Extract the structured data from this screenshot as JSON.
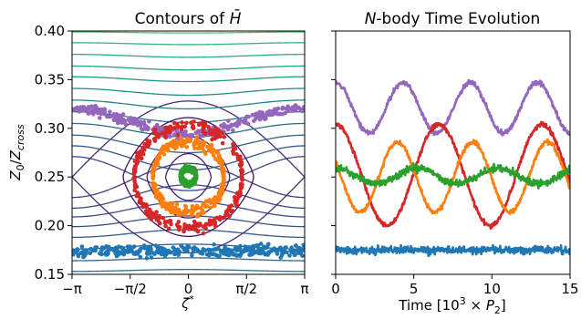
{
  "chart_data": [
    {
      "type": "scatter",
      "title": "Contours of H̄",
      "xlabel": "ζ*",
      "ylabel": "Z0/Zcross",
      "xlim": [
        -3.1416,
        3.1416
      ],
      "ylim": [
        0.15,
        0.4
      ],
      "x_ticks": [
        -3.1416,
        -1.5708,
        0,
        1.5708,
        3.1416
      ],
      "x_tick_labels": [
        "−π",
        "−π/2",
        "0",
        "π/2",
        "π"
      ],
      "y_ticks": [
        0.15,
        0.2,
        0.25,
        0.3,
        0.35,
        0.4
      ],
      "y_tick_labels": [
        "0.15",
        "0.20",
        "0.25",
        "0.30",
        "0.35",
        "0.40"
      ],
      "grid": false,
      "contour_colormap": "viridis",
      "contours": [
        {
          "kind": "open",
          "offset": 0.153,
          "amplitude": 0.002
        },
        {
          "kind": "open",
          "offset": 0.164,
          "amplitude": 0.003
        },
        {
          "kind": "open",
          "offset": 0.176,
          "amplitude": 0.005
        },
        {
          "kind": "open",
          "offset": 0.188,
          "amplitude": 0.008
        },
        {
          "kind": "open",
          "offset": 0.199,
          "amplitude": 0.011
        },
        {
          "kind": "open",
          "offset": 0.209,
          "amplitude": 0.016
        },
        {
          "kind": "open",
          "offset": 0.218,
          "amplitude": 0.024
        },
        {
          "kind": "open",
          "offset": 0.229,
          "amplitude": 0.035
        },
        {
          "kind": "separatrix",
          "center": 0.25,
          "halfwidth": 0.078
        },
        {
          "kind": "open",
          "offset": 0.271,
          "amplitude": -0.035
        },
        {
          "kind": "open",
          "offset": 0.282,
          "amplitude": -0.025
        },
        {
          "kind": "open",
          "offset": 0.293,
          "amplitude": -0.018
        },
        {
          "kind": "open",
          "offset": 0.305,
          "amplitude": -0.014
        },
        {
          "kind": "open",
          "offset": 0.317,
          "amplitude": -0.011
        },
        {
          "kind": "open",
          "offset": 0.329,
          "amplitude": -0.009
        },
        {
          "kind": "open",
          "offset": 0.341,
          "amplitude": -0.007
        },
        {
          "kind": "open",
          "offset": 0.353,
          "amplitude": -0.005
        },
        {
          "kind": "open",
          "offset": 0.364,
          "amplitude": -0.004
        },
        {
          "kind": "open",
          "offset": 0.376,
          "amplitude": -0.003
        },
        {
          "kind": "open",
          "offset": 0.388,
          "amplitude": -0.002
        },
        {
          "kind": "open",
          "offset": 0.399,
          "amplitude": -0.001
        },
        {
          "kind": "closed",
          "center": 0.25,
          "halfwidth": 0.01
        },
        {
          "kind": "closed",
          "center": 0.25,
          "halfwidth": 0.024
        },
        {
          "kind": "closed",
          "center": 0.25,
          "halfwidth": 0.042
        },
        {
          "kind": "closed",
          "center": 0.25,
          "halfwidth": 0.061
        }
      ],
      "series": [
        {
          "kind": "open",
          "color": "#9467bd",
          "offset": 0.3205,
          "amplitude": -0.026,
          "spread": 0.005
        },
        {
          "kind": "closed",
          "color": "#d62728",
          "center": 0.25,
          "halfwidth": 0.052,
          "spread": 0.006
        },
        {
          "kind": "closed",
          "color": "#ff7f0e",
          "center": 0.25,
          "halfwidth": 0.036,
          "spread": 0.006
        },
        {
          "kind": "closed",
          "color": "#2ca02c",
          "center": 0.251,
          "halfwidth": 0.008,
          "spread": 0.003
        },
        {
          "kind": "open",
          "color": "#1f77b4",
          "offset": 0.174,
          "amplitude": 0.0,
          "spread": 0.006
        }
      ]
    },
    {
      "type": "line",
      "title": "N-body Time Evolution",
      "xlabel": "Time [10³ × P₂]",
      "xlim": [
        0,
        15
      ],
      "ylim": [
        0.15,
        0.4
      ],
      "x_ticks": [
        0,
        5,
        10,
        15
      ],
      "x_tick_labels": [
        "0",
        "5",
        "10",
        "15"
      ],
      "y_tick_labels": [],
      "grid": false,
      "series": [
        {
          "color": "#9467bd",
          "mean": 0.321,
          "amplitude": 0.026,
          "period": 4.3,
          "phase": 0.0,
          "noise": 0.0025
        },
        {
          "color": "#d62728",
          "mean": 0.252,
          "amplitude": 0.052,
          "period": 6.6,
          "phase": 0.0,
          "noise": 0.0025
        },
        {
          "color": "#ff7f0e",
          "mean": 0.25,
          "amplitude": 0.036,
          "period": 4.8,
          "phase": 1.1,
          "noise": 0.0025
        },
        {
          "color": "#2ca02c",
          "mean": 0.251,
          "amplitude": 0.008,
          "period": 5.2,
          "phase": 0.0,
          "noise": 0.004
        },
        {
          "color": "#1f77b4",
          "mean": 0.175,
          "amplitude": 0.0,
          "period": 5.0,
          "phase": 0.0,
          "noise": 0.004
        }
      ]
    }
  ]
}
